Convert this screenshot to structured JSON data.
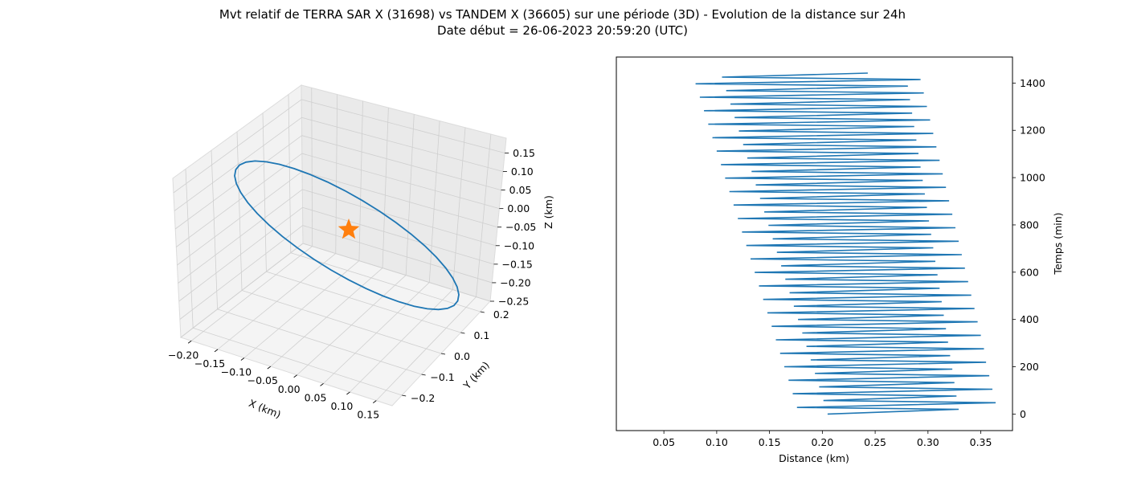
{
  "figure": {
    "title_line1": "Mvt relatif de TERRA SAR X (31698) vs TANDEM X (36605) sur une période (3D) - Evolution de la distance sur 24h",
    "title_line2": "Date début = 26-06-2023 20:59:20 (UTC)"
  },
  "colors": {
    "series": "#1f77b4",
    "marker": "#ff7f0e",
    "pane": "#f2f2f2",
    "grid": "#cfcfcf"
  },
  "chart_data": [
    {
      "type": "line",
      "projection": "3d",
      "xlabel": "X (km)",
      "ylabel": "Y (km)",
      "zlabel": "Z (km)",
      "xlim": [
        -0.22,
        0.18
      ],
      "ylim": [
        -0.25,
        0.25
      ],
      "zlim": [
        -0.25,
        0.19
      ],
      "xticks": [
        "−0.20",
        "−0.15",
        "−0.10",
        "−0.05",
        "0.00",
        "0.05",
        "0.10",
        "0.15"
      ],
      "yticks": [
        "−0.2",
        "−0.1",
        "0.0",
        "0.1",
        "0.2"
      ],
      "zticks": [
        "0.15",
        "0.10",
        "0.05",
        "0.00",
        "−0.05",
        "−0.10",
        "−0.15",
        "−0.20",
        "−0.25"
      ],
      "grid": true,
      "series": [
        {
          "orbit": "ellipse",
          "x_amplitude": 0.18,
          "y_amplitude": 0.21,
          "z_amplitude": 0.1
        }
      ],
      "marker": {
        "symbol": "star",
        "x": 0,
        "y": 0,
        "z": 0
      }
    },
    {
      "type": "line",
      "xlabel": "Distance (km)",
      "ylabel": "Temps (min)",
      "xlim": [
        0.005,
        0.38
      ],
      "ylim": [
        -70,
        1510
      ],
      "xticks": [
        0.05,
        0.1,
        0.15,
        0.2,
        0.25,
        0.3,
        0.35
      ],
      "yticks": [
        0,
        200,
        400,
        600,
        800,
        1000,
        1200,
        1400
      ],
      "yaxis_position": "right",
      "series": [
        {
          "t": [
            0,
            20,
            28,
            48,
            57,
            76,
            86,
            105,
            115,
            133,
            143,
            162,
            172,
            190,
            200,
            219,
            229,
            247,
            257,
            276,
            286,
            304,
            314,
            333,
            343,
            361,
            371,
            390,
            400,
            418,
            428,
            446,
            456,
            475,
            485,
            503,
            513,
            532,
            542,
            560,
            570,
            589,
            599,
            617,
            627,
            646,
            656,
            674,
            684,
            703,
            713,
            731,
            741,
            760,
            770,
            788,
            798,
            817,
            827,
            845,
            855,
            874,
            884,
            902,
            912,
            931,
            941,
            959,
            969,
            988,
            998,
            1016,
            1026,
            1045,
            1055,
            1073,
            1083,
            1102,
            1112,
            1130,
            1140,
            1159,
            1169,
            1187,
            1197,
            1216,
            1226,
            1244,
            1254,
            1273,
            1283,
            1301,
            1311,
            1330,
            1340,
            1358,
            1368,
            1387,
            1397,
            1415,
            1425,
            1442
          ],
          "distance": [
            0.205,
            0.329,
            0.176,
            0.364,
            0.201,
            0.327,
            0.172,
            0.361,
            0.197,
            0.325,
            0.168,
            0.358,
            0.193,
            0.323,
            0.164,
            0.355,
            0.189,
            0.321,
            0.16,
            0.353,
            0.185,
            0.319,
            0.156,
            0.35,
            0.181,
            0.317,
            0.152,
            0.347,
            0.177,
            0.315,
            0.148,
            0.344,
            0.173,
            0.313,
            0.144,
            0.341,
            0.169,
            0.311,
            0.14,
            0.338,
            0.165,
            0.309,
            0.136,
            0.335,
            0.161,
            0.307,
            0.132,
            0.332,
            0.157,
            0.305,
            0.128,
            0.329,
            0.153,
            0.303,
            0.124,
            0.326,
            0.149,
            0.301,
            0.12,
            0.323,
            0.145,
            0.299,
            0.116,
            0.32,
            0.141,
            0.297,
            0.112,
            0.317,
            0.137,
            0.295,
            0.108,
            0.314,
            0.133,
            0.293,
            0.104,
            0.311,
            0.129,
            0.291,
            0.1,
            0.308,
            0.125,
            0.289,
            0.096,
            0.305,
            0.121,
            0.287,
            0.092,
            0.302,
            0.117,
            0.285,
            0.088,
            0.299,
            0.113,
            0.283,
            0.084,
            0.296,
            0.109,
            0.281,
            0.08,
            0.293,
            0.105,
            0.243
          ]
        }
      ]
    }
  ]
}
